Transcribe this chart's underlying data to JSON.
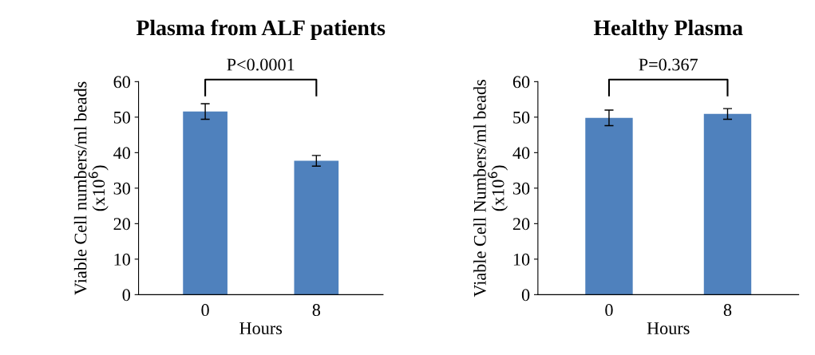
{
  "chart_data": [
    {
      "type": "bar",
      "title": "Plasma from ALF patients",
      "xlabel": "Hours",
      "ylabel": "Viable Cell numbers/ml beads\n(x10$^{6}$)",
      "categories": [
        "0",
        "8"
      ],
      "values": [
        51.6,
        37.7
      ],
      "errors": [
        2.2,
        1.5
      ],
      "color": "#4f81bd",
      "ylim": [
        0,
        60
      ],
      "yticks": [
        0,
        10,
        20,
        30,
        40,
        50,
        60
      ],
      "grid": false,
      "legend": false,
      "annotations": [
        "P<0.0001"
      ]
    },
    {
      "type": "bar",
      "title": "Healthy Plasma",
      "xlabel": "Hours",
      "ylabel": "Viable Cell Numbers/ml beads\n(x10$^{6}$)",
      "categories": [
        "0",
        "8"
      ],
      "values": [
        49.8,
        50.9
      ],
      "errors": [
        2.2,
        1.5
      ],
      "color": "#4f81bd",
      "ylim": [
        0,
        60
      ],
      "yticks": [
        0,
        10,
        20,
        30,
        40,
        50,
        60
      ],
      "grid": false,
      "legend": false,
      "annotations": [
        "P=0.367"
      ]
    }
  ]
}
